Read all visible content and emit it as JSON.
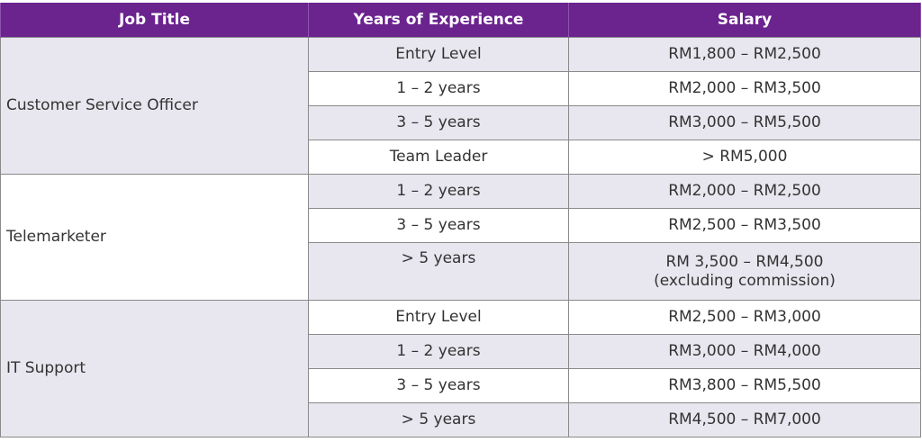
{
  "headers": {
    "job_title": "Job Title",
    "years": "Years of Experience",
    "salary": "Salary"
  },
  "groups": [
    {
      "job": "Customer Service Officer",
      "rows": [
        {
          "years": "Entry Level",
          "salary": "RM1,800 – RM2,500"
        },
        {
          "years": "1 – 2 years",
          "salary": "RM2,000 – RM3,500"
        },
        {
          "years": "3 – 5 years",
          "salary": "RM3,000 – RM5,500"
        },
        {
          "years": "Team Leader",
          "salary": "> RM5,000"
        }
      ]
    },
    {
      "job": "Telemarketer",
      "rows": [
        {
          "years": "1 – 2 years",
          "salary": "RM2,000 – RM2,500"
        },
        {
          "years": "3 – 5 years",
          "salary": "RM2,500 – RM3,500"
        },
        {
          "years": "> 5 years",
          "salary": "RM 3,500 – RM4,500",
          "note": "(excluding commission)"
        }
      ]
    },
    {
      "job": "IT Support",
      "rows": [
        {
          "years": "Entry Level",
          "salary": "RM2,500 – RM3,000"
        },
        {
          "years": "1 – 2 years",
          "salary": "RM3,000 – RM4,000"
        },
        {
          "years": "3 – 5 years",
          "salary": "RM3,800 – RM5,500"
        },
        {
          "years": "> 5 years",
          "salary": "RM4,500 – RM7,000"
        }
      ]
    }
  ]
}
